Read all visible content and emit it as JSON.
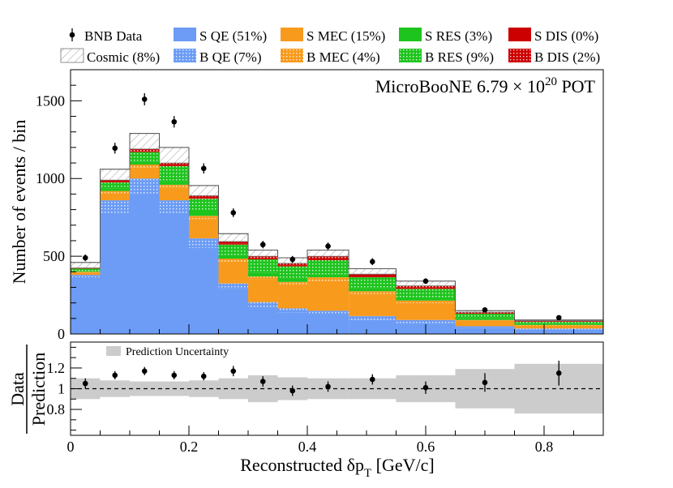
{
  "chart_data": [
    {
      "type": "bar",
      "stacked": true,
      "ylabel": "Number of events / bin",
      "annotation_parts": {
        "prefix": "MicroBooNE 6.79",
        "times": "×",
        "base": "10",
        "exponent": "20",
        "suffix": "POT"
      },
      "ylim": [
        0,
        1700
      ],
      "xlim": [
        0,
        0.9
      ],
      "yticks": [
        0,
        500,
        1000,
        1500
      ],
      "ytick_labels": [
        "0",
        "500",
        "1000",
        "1500"
      ],
      "bin_edges": [
        0,
        0.05,
        0.1,
        0.15,
        0.2,
        0.25,
        0.3,
        0.35,
        0.4,
        0.47,
        0.55,
        0.65,
        0.75,
        0.9
      ],
      "series": [
        {
          "name": "S QE (51%)",
          "color": "#6c9cf5",
          "hatch": "none",
          "values": [
            365,
            780,
            900,
            780,
            555,
            290,
            175,
            140,
            120,
            90,
            70,
            40,
            30
          ]
        },
        {
          "name": "B QE (7%)",
          "color": "#6c9cf5",
          "hatch": "dots",
          "values": [
            15,
            80,
            100,
            80,
            60,
            35,
            30,
            25,
            30,
            25,
            20,
            10,
            5
          ]
        },
        {
          "name": "S MEC (15%)",
          "color": "#f89a1c",
          "hatch": "none",
          "values": [
            15,
            45,
            70,
            80,
            125,
            140,
            145,
            150,
            190,
            140,
            110,
            35,
            20
          ]
        },
        {
          "name": "B MEC (4%)",
          "color": "#f89a1c",
          "hatch": "dots",
          "values": [
            5,
            15,
            20,
            20,
            20,
            20,
            20,
            20,
            25,
            20,
            15,
            5,
            3
          ]
        },
        {
          "name": "S RES (3%)",
          "color": "#1ec41e",
          "hatch": "none",
          "values": [
            5,
            15,
            20,
            20,
            30,
            25,
            25,
            20,
            20,
            20,
            20,
            10,
            5
          ]
        },
        {
          "name": "B RES (9%)",
          "color": "#1ec41e",
          "hatch": "dots",
          "values": [
            15,
            40,
            60,
            100,
            80,
            65,
            85,
            80,
            90,
            70,
            55,
            30,
            15
          ]
        },
        {
          "name": "S DIS (0%)",
          "color": "#cc0000",
          "hatch": "none",
          "values": [
            2,
            5,
            5,
            5,
            5,
            5,
            5,
            5,
            5,
            5,
            5,
            3,
            2
          ]
        },
        {
          "name": "B DIS (2%)",
          "color": "#cc0000",
          "hatch": "dots",
          "values": [
            3,
            10,
            15,
            15,
            15,
            15,
            15,
            15,
            20,
            15,
            15,
            7,
            5
          ]
        },
        {
          "name": "Cosmic (8%)",
          "color": "#ffffff",
          "hatch": "diag",
          "values": [
            35,
            70,
            100,
            100,
            65,
            50,
            40,
            35,
            40,
            35,
            30,
            10,
            5
          ]
        }
      ],
      "data": {
        "name": "BNB Data",
        "x": [
          0.025,
          0.075,
          0.125,
          0.175,
          0.225,
          0.275,
          0.325,
          0.375,
          0.435,
          0.51,
          0.6,
          0.7,
          0.825
        ],
        "y": [
          490,
          1195,
          1510,
          1365,
          1065,
          780,
          575,
          480,
          565,
          465,
          340,
          155,
          105
        ],
        "err": [
          22,
          35,
          39,
          37,
          33,
          28,
          24,
          22,
          24,
          22,
          18,
          12,
          10
        ]
      }
    },
    {
      "type": "scatter",
      "subplot": "ratio",
      "xlabel_parts": {
        "prefix": "Reconstructed",
        "delta": "δp",
        "sub": "T",
        "unit": "[GeV/c]"
      },
      "ylabel_top": "Data",
      "ylabel_bottom": "Prediction",
      "ylim": [
        0.55,
        1.45
      ],
      "xlim": [
        0,
        0.9
      ],
      "yticks": [
        0.8,
        1,
        1.2
      ],
      "ytick_labels": [
        "0.8",
        "1",
        "1.2"
      ],
      "xticks": [
        0,
        0.2,
        0.4,
        0.6,
        0.8
      ],
      "xtick_labels": [
        "0",
        "0.2",
        "0.4",
        "0.6",
        "0.8"
      ],
      "legend_label": "Prediction Uncertainty",
      "band_color": "#cccccc",
      "band_halfwidth": [
        0.1,
        0.08,
        0.07,
        0.07,
        0.08,
        0.1,
        0.13,
        0.11,
        0.1,
        0.1,
        0.13,
        0.19,
        0.24
      ],
      "x": [
        0.025,
        0.075,
        0.125,
        0.175,
        0.225,
        0.275,
        0.325,
        0.375,
        0.435,
        0.51,
        0.6,
        0.7,
        0.825
      ],
      "y": [
        1.05,
        1.13,
        1.17,
        1.13,
        1.12,
        1.17,
        1.07,
        0.98,
        1.02,
        1.09,
        1.01,
        1.06,
        1.15
      ],
      "err": [
        0.05,
        0.04,
        0.04,
        0.04,
        0.04,
        0.05,
        0.05,
        0.05,
        0.05,
        0.05,
        0.06,
        0.09,
        0.12
      ]
    }
  ]
}
